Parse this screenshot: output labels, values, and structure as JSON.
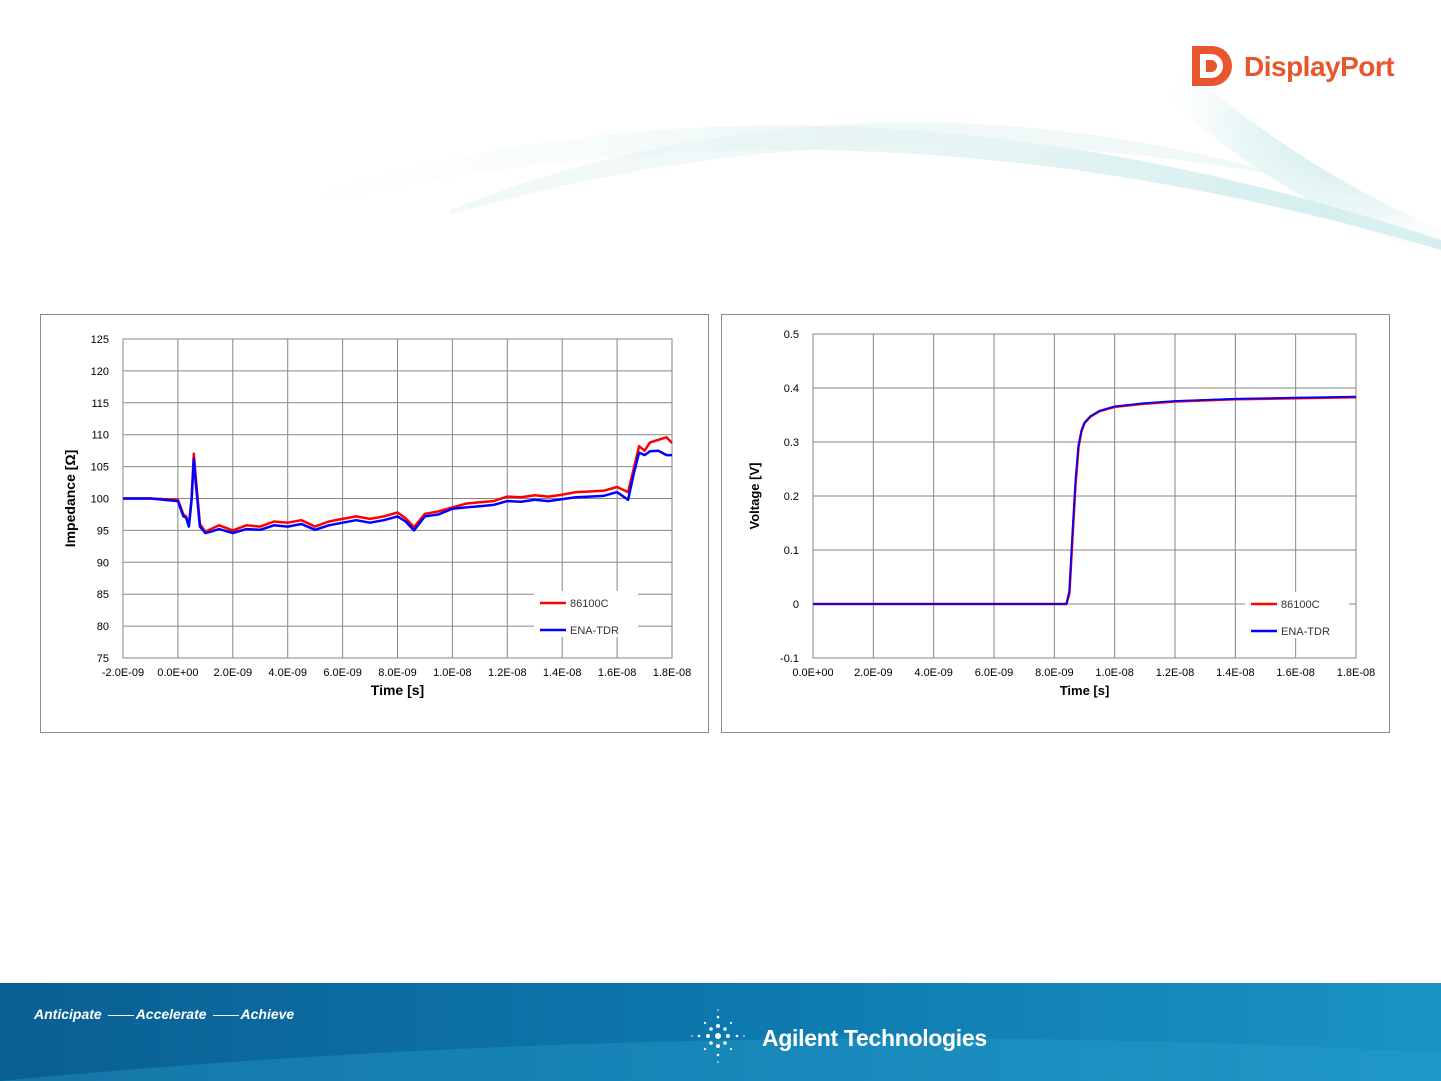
{
  "header": {
    "logo_text": "DisplayPort",
    "logo_color": "#e8562e"
  },
  "chart_data": [
    {
      "type": "line",
      "xlabel": "Time [s]",
      "ylabel": "Impedance [Ω]",
      "x_ticks": [
        "-2.0E-09",
        "0.0E+00",
        "2.0E-09",
        "4.0E-09",
        "6.0E-09",
        "8.0E-09",
        "1.0E-08",
        "1.2E-08",
        "1.4E-08",
        "1.6E-08",
        "1.8E-08"
      ],
      "xlim": [
        -2e-09,
        1.8e-08
      ],
      "ylim": [
        75,
        125
      ],
      "y_ticks": [
        "125",
        "120",
        "115",
        "110",
        "105",
        "100",
        "95",
        "90",
        "85",
        "80",
        "75"
      ],
      "grid": true,
      "legend": "bottom-right",
      "series": [
        {
          "name": "86100C",
          "color": "#ff0000",
          "x": [
            -2e-09,
            -1e-09,
            0.0,
            2e-10,
            3e-10,
            4e-10,
            5e-10,
            5.8e-10,
            6.5e-10,
            8e-10,
            1e-09,
            1.2e-09,
            1.5e-09,
            2e-09,
            2.5e-09,
            3e-09,
            3.5e-09,
            4e-09,
            4.5e-09,
            5e-09,
            5.5e-09,
            6e-09,
            6.5e-09,
            7e-09,
            7.5e-09,
            8e-09,
            8.3e-09,
            8.6e-09,
            9e-09,
            9.5e-09,
            1e-08,
            1.05e-08,
            1.1e-08,
            1.15e-08,
            1.2e-08,
            1.25e-08,
            1.3e-08,
            1.35e-08,
            1.4e-08,
            1.45e-08,
            1.5e-08,
            1.55e-08,
            1.6e-08,
            1.64e-08,
            1.66e-08,
            1.68e-08,
            1.7e-08,
            1.72e-08,
            1.75e-08,
            1.78e-08,
            1.8e-08
          ],
          "values": [
            100.0,
            100.0,
            99.8,
            97.5,
            97.2,
            95.8,
            100.0,
            107.0,
            103.5,
            96.0,
            94.8,
            95.2,
            95.8,
            95.0,
            95.8,
            95.6,
            96.4,
            96.2,
            96.6,
            95.6,
            96.4,
            96.8,
            97.2,
            96.8,
            97.2,
            97.8,
            96.9,
            95.5,
            97.6,
            98.0,
            98.6,
            99.2,
            99.4,
            99.6,
            100.3,
            100.2,
            100.5,
            100.3,
            100.6,
            101.0,
            101.1,
            101.2,
            101.8,
            101.0,
            104.6,
            108.2,
            107.5,
            108.8,
            109.2,
            109.6,
            108.7
          ]
        },
        {
          "name": "ENA-TDR",
          "color": "#0000ff",
          "x": [
            -2e-09,
            -1e-09,
            0.0,
            2e-10,
            3e-10,
            4e-10,
            5e-10,
            5.8e-10,
            6.5e-10,
            8e-10,
            1e-09,
            1.2e-09,
            1.5e-09,
            2e-09,
            2.5e-09,
            3e-09,
            3.5e-09,
            4e-09,
            4.5e-09,
            5e-09,
            5.5e-09,
            6e-09,
            6.5e-09,
            7e-09,
            7.5e-09,
            8e-09,
            8.3e-09,
            8.6e-09,
            9e-09,
            9.5e-09,
            1e-08,
            1.05e-08,
            1.1e-08,
            1.15e-08,
            1.2e-08,
            1.25e-08,
            1.3e-08,
            1.35e-08,
            1.4e-08,
            1.45e-08,
            1.5e-08,
            1.55e-08,
            1.6e-08,
            1.64e-08,
            1.66e-08,
            1.68e-08,
            1.7e-08,
            1.72e-08,
            1.75e-08,
            1.78e-08,
            1.8e-08
          ],
          "values": [
            100.0,
            100.0,
            99.6,
            97.2,
            97.0,
            95.6,
            99.8,
            106.2,
            102.5,
            95.6,
            94.6,
            94.8,
            95.2,
            94.6,
            95.2,
            95.1,
            95.8,
            95.6,
            96.0,
            95.1,
            95.8,
            96.2,
            96.6,
            96.2,
            96.6,
            97.2,
            96.4,
            95.0,
            97.2,
            97.5,
            98.4,
            98.6,
            98.8,
            99.0,
            99.6,
            99.5,
            99.8,
            99.6,
            99.9,
            100.2,
            100.3,
            100.4,
            101.0,
            99.8,
            103.8,
            107.2,
            106.8,
            107.4,
            107.5,
            106.8,
            106.8
          ]
        }
      ]
    },
    {
      "type": "line",
      "xlabel": "Time [s]",
      "ylabel": "Voltage [V]",
      "x_ticks": [
        "0.0E+00",
        "2.0E-09",
        "4.0E-09",
        "6.0E-09",
        "8.0E-09",
        "1.0E-08",
        "1.2E-08",
        "1.4E-08",
        "1.6E-08",
        "1.8E-08"
      ],
      "xlim": [
        0,
        1.8e-08
      ],
      "ylim": [
        -0.1,
        0.5
      ],
      "y_ticks": [
        "0.5",
        "0.4",
        "0.3",
        "0.2",
        "0.1",
        "0",
        "-0.1"
      ],
      "grid": true,
      "legend": "bottom-right",
      "series": [
        {
          "name": "86100C",
          "color": "#ff0000",
          "x": [
            0.0,
            8e-09,
            8.4e-09,
            8.5e-09,
            8.6e-09,
            8.7e-09,
            8.8e-09,
            8.9e-09,
            9e-09,
            9.2e-09,
            9.5e-09,
            1e-08,
            1.1e-08,
            1.2e-08,
            1.3e-08,
            1.4e-08,
            1.6e-08,
            1.8e-08
          ],
          "values": [
            0.0,
            0.0,
            0.0,
            0.02,
            0.12,
            0.22,
            0.29,
            0.32,
            0.335,
            0.347,
            0.357,
            0.365,
            0.371,
            0.375,
            0.377,
            0.379,
            0.381,
            0.383
          ]
        },
        {
          "name": "ENA-TDR",
          "color": "#0000ff",
          "x": [
            0.0,
            8e-09,
            8.4e-09,
            8.5e-09,
            8.6e-09,
            8.7e-09,
            8.8e-09,
            8.9e-09,
            9e-09,
            9.2e-09,
            9.5e-09,
            1e-08,
            1.1e-08,
            1.2e-08,
            1.3e-08,
            1.4e-08,
            1.6e-08,
            1.8e-08
          ],
          "values": [
            0.0,
            0.0,
            0.0,
            0.025,
            0.13,
            0.23,
            0.295,
            0.322,
            0.336,
            0.348,
            0.358,
            0.366,
            0.372,
            0.376,
            0.378,
            0.38,
            0.382,
            0.384
          ]
        }
      ]
    }
  ],
  "footer": {
    "tagline_words": [
      "Anticipate",
      "Accelerate",
      "Achieve"
    ],
    "brand": "Agilent Technologies",
    "bg_color": "#0b6fa4"
  }
}
